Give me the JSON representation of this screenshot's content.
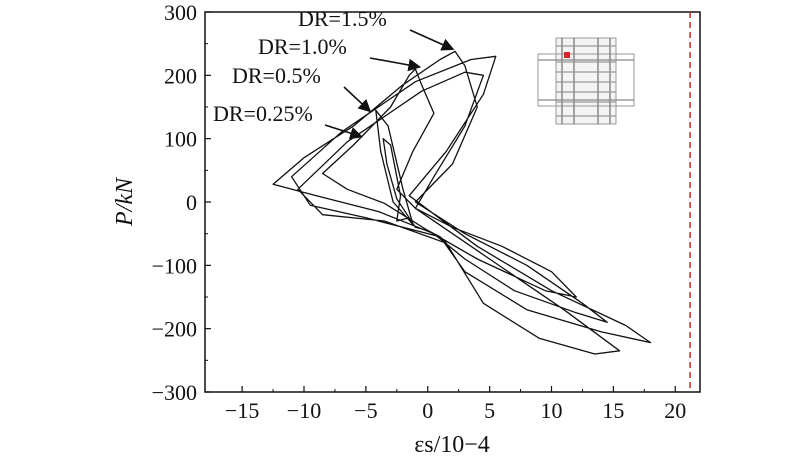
{
  "chart_data": {
    "type": "line",
    "xlabel": "εs/10−4",
    "ylabel": "P/kN",
    "xlim": [
      -18,
      22
    ],
    "ylim": [
      -300,
      300
    ],
    "xticks": [
      -15,
      -10,
      -5,
      0,
      5,
      10,
      15,
      20
    ],
    "yticks": [
      -300,
      -200,
      -100,
      0,
      100,
      200,
      300
    ],
    "xtick_labels": [
      "−15",
      "−10",
      "−5",
      "0",
      "5",
      "10",
      "15",
      "20"
    ],
    "ytick_labels": [
      "−300",
      "−200",
      "−100",
      "0",
      "100",
      "200",
      "300"
    ],
    "grid": false,
    "yield_strain_line": {
      "x": 21.2,
      "color": "#c0392b",
      "style": "dashed"
    },
    "annotations": [
      {
        "text": "DR=1.5%",
        "arrow_to": [
          2.2,
          238
        ]
      },
      {
        "text": "DR=1.0%",
        "arrow_to": [
          -0.5,
          210
        ]
      },
      {
        "text": "DR=0.5%",
        "arrow_to": [
          -4.5,
          140
        ]
      },
      {
        "text": "DR=0.25%",
        "arrow_to": [
          -5.2,
          100
        ]
      }
    ],
    "series": [
      {
        "values": [
          [
            -1.5,
            -25
          ],
          [
            -2.5,
            5
          ],
          [
            -3.3,
            60
          ],
          [
            -3.6,
            100
          ],
          [
            -3.0,
            90
          ],
          [
            -2.2,
            10
          ],
          [
            -2.5,
            -30
          ],
          [
            -1.5,
            -25
          ],
          [
            -1.0,
            -40
          ],
          [
            -2.8,
            0
          ],
          [
            -3.8,
            80
          ],
          [
            -4.2,
            145
          ],
          [
            -3.2,
            120
          ],
          [
            -2.0,
            20
          ],
          [
            -1.2,
            -35
          ],
          [
            -1.0,
            -40
          ],
          [
            0.0,
            -45
          ],
          [
            -3.5,
            -2
          ],
          [
            -6.5,
            20
          ],
          [
            -8.5,
            45
          ],
          [
            -6.0,
            90
          ],
          [
            -3.0,
            150
          ],
          [
            -1.5,
            200
          ],
          [
            -1.0,
            210
          ],
          [
            -0.5,
            185
          ],
          [
            0.5,
            140
          ],
          [
            -1.2,
            80
          ],
          [
            -2.5,
            20
          ],
          [
            -1.0,
            -10
          ],
          [
            2.0,
            -40
          ],
          [
            6.0,
            -70
          ],
          [
            10.0,
            -110
          ],
          [
            12.0,
            -150
          ],
          [
            9.5,
            -140
          ],
          [
            4.0,
            -90
          ],
          [
            0.0,
            -45
          ],
          [
            0.5,
            -50
          ],
          [
            -4.0,
            -15
          ],
          [
            -9.0,
            10
          ],
          [
            -12.5,
            28
          ],
          [
            -10.0,
            70
          ],
          [
            -6.0,
            120
          ],
          [
            -2.0,
            185
          ],
          [
            1.0,
            225
          ],
          [
            2.2,
            238
          ],
          [
            3.0,
            215
          ],
          [
            4.0,
            150
          ],
          [
            2.0,
            60
          ],
          [
            -1.0,
            0
          ],
          [
            3.0,
            -50
          ],
          [
            8.0,
            -100
          ],
          [
            12.5,
            -160
          ],
          [
            14.5,
            -190
          ],
          [
            12.0,
            -175
          ],
          [
            7.0,
            -140
          ],
          [
            3.0,
            -90
          ],
          [
            0.5,
            -50
          ],
          [
            1.0,
            -55
          ],
          [
            -5.0,
            -25
          ],
          [
            -9.5,
            -5
          ],
          [
            -11.0,
            40
          ],
          [
            -7.0,
            110
          ],
          [
            -1.0,
            190
          ],
          [
            3.5,
            225
          ],
          [
            5.5,
            230
          ],
          [
            4.5,
            170
          ],
          [
            1.5,
            80
          ],
          [
            -1.5,
            10
          ],
          [
            4.0,
            -70
          ],
          [
            10.0,
            -140
          ],
          [
            16.0,
            -195
          ],
          [
            18.0,
            -222
          ],
          [
            14.0,
            -205
          ],
          [
            8.0,
            -170
          ],
          [
            3.0,
            -110
          ],
          [
            1.0,
            -55
          ],
          [
            1.5,
            -65
          ],
          [
            -3.5,
            -30
          ],
          [
            -8.5,
            -20
          ],
          [
            -10.5,
            20
          ],
          [
            -6.5,
            95
          ],
          [
            -0.5,
            175
          ],
          [
            3.0,
            205
          ],
          [
            4.5,
            200
          ],
          [
            3.0,
            120
          ],
          [
            0.5,
            40
          ],
          [
            -1.0,
            -10
          ],
          [
            5.0,
            -90
          ],
          [
            11.0,
            -170
          ],
          [
            15.5,
            -235
          ],
          [
            13.5,
            -240
          ],
          [
            9.0,
            -215
          ],
          [
            4.5,
            -160
          ],
          [
            1.5,
            -65
          ]
        ]
      }
    ]
  }
}
